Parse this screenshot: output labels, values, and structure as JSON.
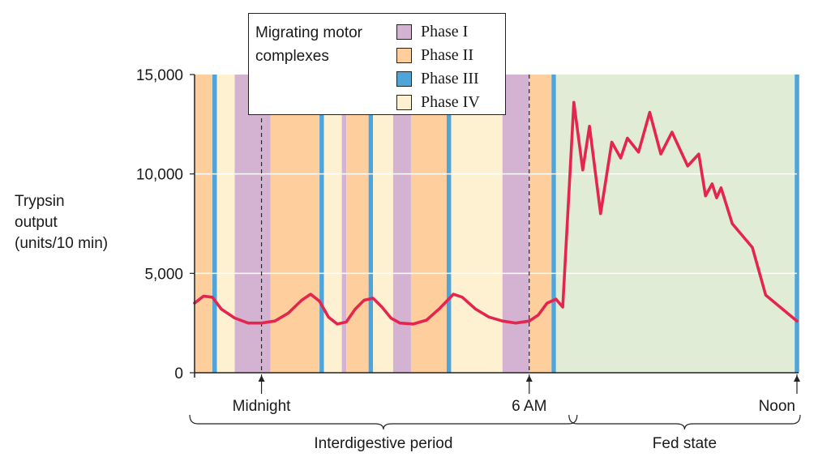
{
  "chart_data": {
    "type": "line",
    "ylabel": [
      "Trypsin",
      "output",
      "(units/10 min)"
    ],
    "ylim": [
      0,
      15000
    ],
    "yticks": [
      0,
      5000,
      10000,
      15000
    ],
    "ytick_labels": [
      "0",
      "5,000",
      "10,000",
      "15,000"
    ],
    "time_range": [
      -1.5,
      12
    ],
    "x_markers": [
      {
        "label": "Midnight",
        "x": 0
      },
      {
        "label": "6 AM",
        "x": 6,
        "small_caps": true
      },
      {
        "label": "Noon",
        "x": 12
      }
    ],
    "periods": [
      {
        "label": "Interdigestive period",
        "x": [
          -1.5,
          7
        ]
      },
      {
        "label": "Fed state",
        "x": [
          7,
          12
        ]
      }
    ],
    "phase_colors": {
      "I": "#d3b3d1",
      "II": "#fecf9c",
      "III": "#4fa4d9",
      "IV": "#fef1d2",
      "fed": "#e1ecd6"
    },
    "legend": {
      "title": [
        "Migrating motor",
        "complexes"
      ],
      "items": [
        {
          "label": "Phase I",
          "phase": "I"
        },
        {
          "label": "Phase II",
          "phase": "II"
        },
        {
          "label": "Phase III",
          "phase": "III"
        },
        {
          "label": "Phase IV",
          "phase": "IV"
        }
      ]
    },
    "phases": [
      {
        "phase": "II",
        "x": [
          -1.5,
          -1.1
        ]
      },
      {
        "phase": "III",
        "x": [
          -1.1,
          -1.0
        ]
      },
      {
        "phase": "IV",
        "x": [
          -1.0,
          -0.6
        ]
      },
      {
        "phase": "I",
        "x": [
          -0.6,
          0.2
        ]
      },
      {
        "phase": "II",
        "x": [
          0.2,
          1.3
        ]
      },
      {
        "phase": "III",
        "x": [
          1.3,
          1.4
        ]
      },
      {
        "phase": "IV",
        "x": [
          1.4,
          1.8
        ]
      },
      {
        "phase": "I",
        "x": [
          1.8,
          1.9
        ]
      },
      {
        "phase": "II",
        "x": [
          1.9,
          2.4
        ]
      },
      {
        "phase": "III",
        "x": [
          2.4,
          2.5
        ]
      },
      {
        "phase": "IV",
        "x": [
          2.5,
          2.95
        ]
      },
      {
        "phase": "I",
        "x": [
          2.95,
          3.35
        ]
      },
      {
        "phase": "II",
        "x": [
          3.35,
          4.15
        ]
      },
      {
        "phase": "III",
        "x": [
          4.15,
          4.25
        ]
      },
      {
        "phase": "IV",
        "x": [
          4.25,
          5.4
        ]
      },
      {
        "phase": "I",
        "x": [
          5.4,
          6.0
        ]
      },
      {
        "phase": "II",
        "x": [
          6.0,
          6.5
        ]
      },
      {
        "phase": "III",
        "x": [
          6.5,
          6.6
        ]
      },
      {
        "phase": "fed",
        "x": [
          6.6,
          11.95
        ]
      },
      {
        "phase": "III",
        "x": [
          11.95,
          12.05
        ]
      }
    ],
    "dashed_lines": [
      0,
      6
    ],
    "series": [
      {
        "color": "#e4264f",
        "points": [
          [
            -1.5,
            3500
          ],
          [
            -1.3,
            3850
          ],
          [
            -1.1,
            3800
          ],
          [
            -0.9,
            3200
          ],
          [
            -0.6,
            2750
          ],
          [
            -0.3,
            2500
          ],
          [
            0.0,
            2500
          ],
          [
            0.3,
            2600
          ],
          [
            0.6,
            3000
          ],
          [
            0.9,
            3650
          ],
          [
            1.1,
            3950
          ],
          [
            1.3,
            3600
          ],
          [
            1.5,
            2800
          ],
          [
            1.7,
            2450
          ],
          [
            1.9,
            2550
          ],
          [
            2.1,
            3200
          ],
          [
            2.3,
            3650
          ],
          [
            2.5,
            3750
          ],
          [
            2.7,
            3300
          ],
          [
            2.9,
            2750
          ],
          [
            3.1,
            2500
          ],
          [
            3.4,
            2450
          ],
          [
            3.7,
            2650
          ],
          [
            4.0,
            3250
          ],
          [
            4.3,
            3950
          ],
          [
            4.5,
            3800
          ],
          [
            4.8,
            3200
          ],
          [
            5.1,
            2800
          ],
          [
            5.4,
            2600
          ],
          [
            5.7,
            2500
          ],
          [
            6.0,
            2600
          ],
          [
            6.2,
            2900
          ],
          [
            6.4,
            3500
          ],
          [
            6.6,
            3700
          ],
          [
            6.75,
            3300
          ],
          [
            7.0,
            13600
          ],
          [
            7.2,
            10200
          ],
          [
            7.35,
            12400
          ],
          [
            7.6,
            8000
          ],
          [
            7.85,
            11600
          ],
          [
            8.05,
            10800
          ],
          [
            8.2,
            11800
          ],
          [
            8.45,
            11100
          ],
          [
            8.7,
            13100
          ],
          [
            8.95,
            11000
          ],
          [
            9.2,
            12100
          ],
          [
            9.55,
            10400
          ],
          [
            9.8,
            11000
          ],
          [
            9.95,
            8900
          ],
          [
            10.1,
            9500
          ],
          [
            10.2,
            8800
          ],
          [
            10.3,
            9300
          ],
          [
            10.55,
            7500
          ],
          [
            11.0,
            6300
          ],
          [
            11.3,
            3900
          ],
          [
            12.0,
            2600
          ]
        ]
      }
    ]
  }
}
